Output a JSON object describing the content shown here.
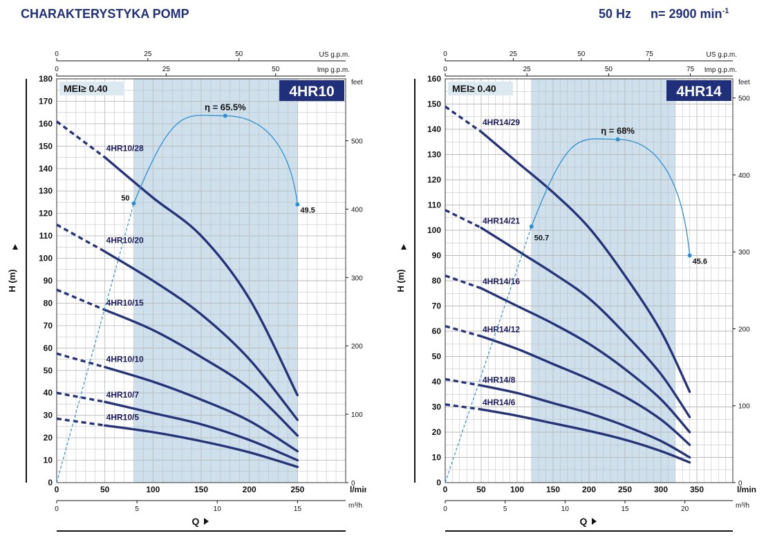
{
  "header": {
    "title": "CHARAKTERYSTYKA POMP",
    "frequency": "50 Hz",
    "speed_label": "n= 2900 min",
    "speed_exp": "-1"
  },
  "colors": {
    "brand": "#1f2f7a",
    "curve": "#25337a",
    "efficiency": "#2b8fd0",
    "shade": "#cde0ec",
    "grid": "#b9b9b9"
  },
  "chart_data": [
    {
      "type": "line",
      "model": "4HR10",
      "mei_label": "MEI≥ 0.40",
      "ylabel": "H  (m)",
      "xlabel": "Q",
      "x_unit": "l/min",
      "xlim": [
        0,
        300
      ],
      "ylim": [
        0,
        180
      ],
      "x_ticks": [
        0,
        50,
        100,
        150,
        200,
        250
      ],
      "y_ticks": [
        0,
        10,
        20,
        30,
        40,
        50,
        60,
        70,
        80,
        90,
        100,
        110,
        120,
        130,
        140,
        150,
        160,
        170,
        180
      ],
      "feet_label": "feet",
      "feet_ticks": [
        0,
        100,
        200,
        300,
        400,
        500
      ],
      "us_gpm_label": "US g.p.m.",
      "us_gpm_ticks": [
        0,
        25,
        50
      ],
      "imp_gpm_label": "Imp g.p.m.",
      "imp_gpm_ticks": [
        0,
        25,
        50
      ],
      "m3h_label": "m³/h",
      "m3h_ticks": [
        0,
        5,
        10,
        15
      ],
      "shaded_range": [
        80,
        250
      ],
      "efficiency": {
        "label": "η = 65.5%",
        "peak_q": 175,
        "peak_h": 163.5,
        "start_label": "50",
        "start_q": 80,
        "start_h": 124.5,
        "end_label": "49.5",
        "end_q": 250,
        "end_h": 124
      },
      "series": [
        {
          "name": "4HR10/28",
          "label_at": [
            50,
            146
          ],
          "q": [
            0,
            50,
            100,
            150,
            200,
            250
          ],
          "h": [
            161,
            145,
            127,
            110,
            82,
            39
          ]
        },
        {
          "name": "4HR10/20",
          "label_at": [
            50,
            105
          ],
          "q": [
            0,
            50,
            100,
            150,
            200,
            250
          ],
          "h": [
            115,
            103,
            90,
            75,
            55,
            28
          ]
        },
        {
          "name": "4HR10/15",
          "label_at": [
            50,
            77
          ],
          "q": [
            0,
            50,
            100,
            150,
            200,
            250
          ],
          "h": [
            86,
            77,
            68,
            56,
            42,
            21
          ]
        },
        {
          "name": "4HR10/10",
          "label_at": [
            50,
            52
          ],
          "q": [
            0,
            50,
            100,
            150,
            200,
            250
          ],
          "h": [
            57.5,
            51.5,
            45,
            37,
            27.5,
            14
          ]
        },
        {
          "name": "4HR10/7",
          "label_at": [
            50,
            36
          ],
          "q": [
            0,
            50,
            100,
            150,
            200,
            250
          ],
          "h": [
            40,
            36,
            31,
            26,
            19,
            10
          ]
        },
        {
          "name": "4HR10/5",
          "label_at": [
            50,
            26
          ],
          "q": [
            0,
            50,
            100,
            150,
            200,
            250
          ],
          "h": [
            28.5,
            25.5,
            22.5,
            18.5,
            13.5,
            7
          ]
        }
      ]
    },
    {
      "type": "line",
      "model": "4HR14",
      "mei_label": "MEI≥ 0.40",
      "ylabel": "H  (m)",
      "xlabel": "Q",
      "x_unit": "l/min",
      "xlim": [
        0,
        400
      ],
      "ylim": [
        0,
        160
      ],
      "x_ticks": [
        0,
        50,
        100,
        150,
        200,
        250,
        300,
        350
      ],
      "y_ticks": [
        0,
        10,
        20,
        30,
        40,
        50,
        60,
        70,
        80,
        90,
        100,
        110,
        120,
        130,
        140,
        150,
        160
      ],
      "feet_label": "feet",
      "feet_ticks": [
        0,
        100,
        200,
        300,
        400,
        500
      ],
      "us_gpm_label": "US g.p.m.",
      "us_gpm_ticks": [
        0,
        25,
        50,
        75
      ],
      "imp_gpm_label": "Imp g.p.m.",
      "imp_gpm_ticks": [
        0,
        25,
        50,
        75
      ],
      "m3h_label": "m³/h",
      "m3h_ticks": [
        0,
        5,
        10,
        15,
        20
      ],
      "shaded_range": [
        120,
        320
      ],
      "efficiency": {
        "label": "η = 68%",
        "peak_q": 240,
        "peak_h": 136,
        "start_label": "50.7",
        "start_q": 120,
        "start_h": 101.5,
        "end_label": "45.6",
        "end_q": 340,
        "end_h": 90
      },
      "series": [
        {
          "name": "4HR14/29",
          "label_at": [
            50,
            140
          ],
          "q": [
            0,
            50,
            100,
            150,
            200,
            250,
            300,
            340
          ],
          "h": [
            149,
            139,
            127,
            115,
            101,
            82,
            60,
            36
          ]
        },
        {
          "name": "4HR14/21",
          "label_at": [
            50,
            101
          ],
          "q": [
            0,
            50,
            100,
            150,
            200,
            250,
            300,
            340
          ],
          "h": [
            108,
            101,
            92,
            83,
            73,
            59,
            43,
            26
          ]
        },
        {
          "name": "4HR14/16",
          "label_at": [
            50,
            77
          ],
          "q": [
            0,
            50,
            100,
            150,
            200,
            250,
            300,
            340
          ],
          "h": [
            82,
            77,
            70,
            63,
            55,
            45,
            33,
            20
          ]
        },
        {
          "name": "4HR14/12",
          "label_at": [
            50,
            58
          ],
          "q": [
            0,
            50,
            100,
            150,
            200,
            250,
            300,
            340
          ],
          "h": [
            62,
            58,
            53,
            47,
            41,
            34,
            25,
            15
          ]
        },
        {
          "name": "4HR14/8",
          "label_at": [
            50,
            38
          ],
          "q": [
            0,
            50,
            100,
            150,
            200,
            250,
            300,
            340
          ],
          "h": [
            41,
            38.5,
            35.5,
            31.5,
            27.5,
            22.5,
            16.5,
            10
          ]
        },
        {
          "name": "4HR14/6",
          "label_at": [
            50,
            29
          ],
          "q": [
            0,
            50,
            100,
            150,
            200,
            250,
            300,
            340
          ],
          "h": [
            31,
            29,
            26.5,
            23.5,
            20.5,
            17,
            12.5,
            8
          ]
        }
      ]
    }
  ]
}
